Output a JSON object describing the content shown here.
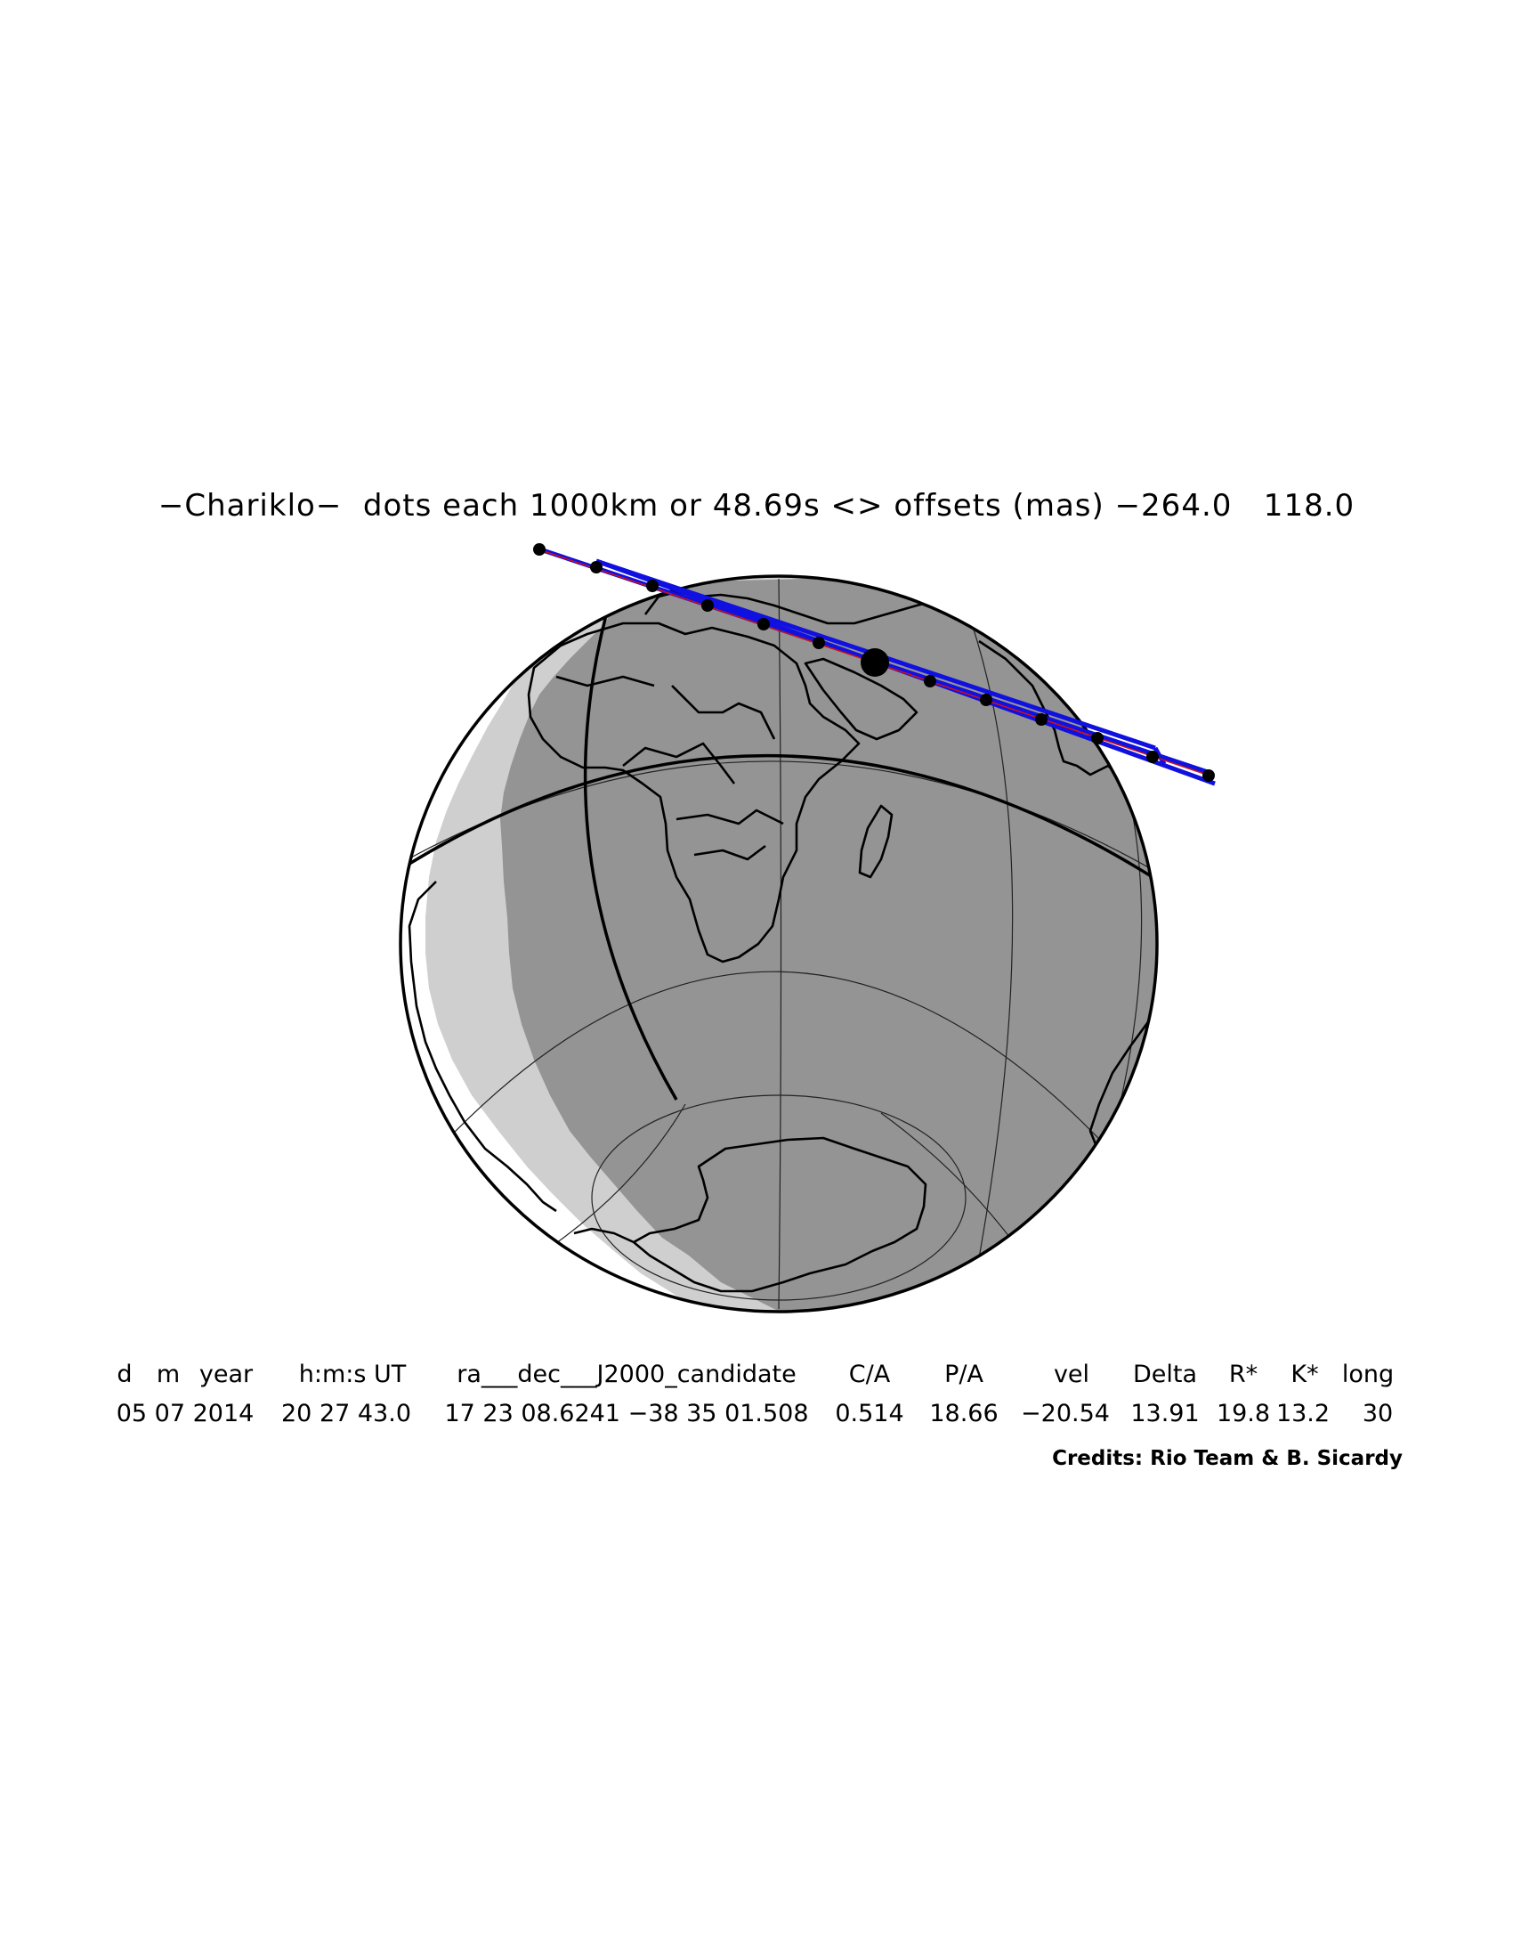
{
  "title": "−Chariklo−  dots each 1000km or 48.69s <> offsets (mas) −264.0   118.0",
  "table": {
    "headers": [
      "d",
      "m",
      "year",
      "h:m:s UT",
      "ra___dec___J2000_candidate",
      "C/A",
      "P/A",
      "vel",
      "Delta",
      "R*",
      "K*",
      "long"
    ],
    "values": [
      "05 07 2014",
      "20 27 43.0",
      "17 23 08.6241 −38 35 01.508",
      "0.514",
      "18.66",
      "−20.54",
      "13.91",
      "19.8",
      "13.2",
      "30"
    ]
  },
  "credits": "Credits: Rio Team & B. Sicardy",
  "colors": {
    "shadow_track": "#1010e0",
    "centerline": "#d01010",
    "night": "#949494",
    "twilight": "#cfcfcf",
    "day": "#ffffff"
  },
  "map": {
    "projection": "orthographic globe",
    "subobserver_longitude": 30,
    "marker_interval_km": 1000,
    "marker_interval_s": 48.69
  }
}
